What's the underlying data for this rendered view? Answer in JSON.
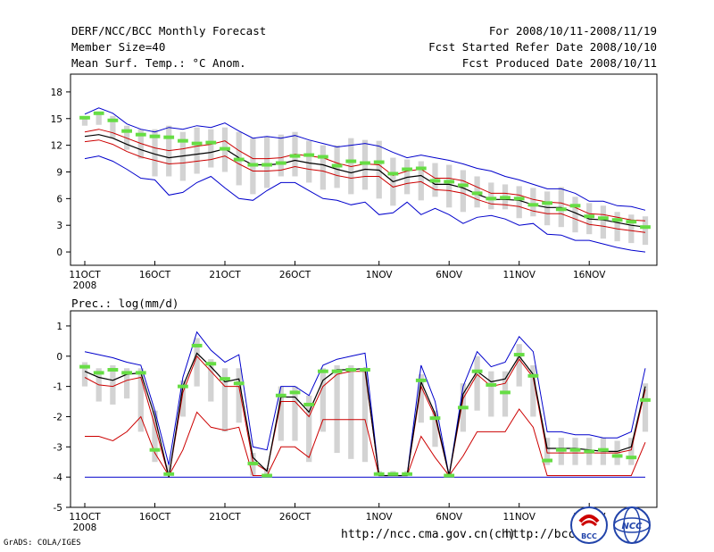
{
  "header": {
    "title": "DERF/NCC/BCC Monthly Forecast",
    "member": "Member Size=40",
    "variable": "Mean Surf. Temp.: °C Anom.",
    "period": "For 2008/10/11-2008/11/19",
    "started": "Fcst Started Refer Date 2008/10/10",
    "produced": "Fcst Produced Date 2008/10/11"
  },
  "footer": {
    "grads": "GrADS: COLA/IGES",
    "url1": "http://ncc.cma.gov.cn(ch)",
    "url2": "http://bcc.c",
    "logo_left": "BCC",
    "logo_right": "NCC"
  },
  "colors": {
    "envelope": "#0000cc",
    "mean": "#000000",
    "spread": "#cc0000",
    "box": "#d3d3d3",
    "marker": "#66dd44"
  },
  "chart_data": [
    {
      "type": "line",
      "title": "Mean Surf. Temp.: °C Anom.",
      "ylim": [
        -1.5,
        20
      ],
      "yticks": [
        0,
        3,
        6,
        9,
        12,
        15,
        18
      ],
      "x_tick_labels": [
        {
          "label": "11OCT",
          "sub": "2008",
          "day": 0
        },
        {
          "label": "16OCT",
          "day": 5
        },
        {
          "label": "21OCT",
          "day": 10
        },
        {
          "label": "26OCT",
          "day": 15
        },
        {
          "label": "1NOV",
          "day": 21
        },
        {
          "label": "6NOV",
          "day": 26
        },
        {
          "label": "11NOV",
          "day": 31
        },
        {
          "label": "16NOV",
          "day": 36
        }
      ],
      "series": [
        {
          "name": "max",
          "color": "#0000cc",
          "values": [
            15.5,
            16.2,
            15.6,
            14.4,
            13.8,
            13.5,
            14.0,
            13.8,
            14.2,
            14.0,
            14.5,
            13.6,
            12.8,
            13.0,
            12.8,
            13.1,
            12.6,
            12.2,
            11.8,
            12.0,
            12.2,
            11.9,
            11.2,
            10.6,
            10.9,
            10.6,
            10.3,
            9.9,
            9.4,
            9.1,
            8.5,
            8.1,
            7.6,
            7.1,
            7.1,
            6.6,
            5.7,
            5.7,
            5.2,
            5.1,
            4.7
          ]
        },
        {
          "name": "upper",
          "color": "#cc0000",
          "values": [
            13.5,
            13.8,
            13.4,
            12.8,
            12.2,
            11.7,
            11.4,
            11.6,
            11.9,
            12.1,
            12.5,
            11.4,
            10.5,
            10.5,
            10.6,
            11.0,
            10.8,
            10.6,
            10.0,
            9.6,
            9.9,
            9.8,
            8.6,
            9.1,
            9.3,
            8.3,
            8.3,
            8.0,
            7.3,
            6.6,
            6.6,
            6.4,
            5.9,
            5.6,
            5.5,
            5.0,
            4.3,
            4.2,
            3.9,
            3.6,
            3.5
          ]
        },
        {
          "name": "mean",
          "color": "#000000",
          "values": [
            13.0,
            13.2,
            12.8,
            12.1,
            11.5,
            11.0,
            10.6,
            10.8,
            11.0,
            11.2,
            11.6,
            10.6,
            9.8,
            9.8,
            9.9,
            10.3,
            10.0,
            9.8,
            9.3,
            8.9,
            9.3,
            9.2,
            7.9,
            8.4,
            8.6,
            7.6,
            7.6,
            7.2,
            6.5,
            5.9,
            5.9,
            5.8,
            5.3,
            5.0,
            5.0,
            4.4,
            3.7,
            3.6,
            3.3,
            3.0,
            2.8
          ]
        },
        {
          "name": "lower",
          "color": "#cc0000",
          "values": [
            12.4,
            12.6,
            12.1,
            11.3,
            10.7,
            10.3,
            9.9,
            10.0,
            10.2,
            10.4,
            10.8,
            9.9,
            9.1,
            9.1,
            9.2,
            9.6,
            9.3,
            9.1,
            8.6,
            8.3,
            8.5,
            8.5,
            7.3,
            7.7,
            7.9,
            7.0,
            6.9,
            6.6,
            5.9,
            5.4,
            5.3,
            5.1,
            4.6,
            4.3,
            4.3,
            3.7,
            3.1,
            2.9,
            2.6,
            2.4,
            2.2
          ]
        },
        {
          "name": "min",
          "color": "#0000cc",
          "values": [
            10.5,
            10.8,
            10.2,
            9.3,
            8.3,
            8.1,
            6.4,
            6.7,
            7.8,
            8.5,
            7.2,
            6.0,
            5.8,
            6.9,
            7.8,
            7.8,
            6.9,
            6.0,
            5.8,
            5.3,
            5.6,
            4.2,
            4.4,
            5.6,
            4.2,
            4.9,
            4.2,
            3.2,
            3.9,
            4.1,
            3.7,
            3.0,
            3.2,
            2.0,
            1.9,
            1.3,
            1.3,
            0.9,
            0.5,
            0.2,
            0.0
          ]
        },
        {
          "name": "member-marker",
          "color": "#66dd44",
          "values": [
            15.1,
            15.6,
            14.8,
            13.6,
            13.2,
            13.0,
            12.9,
            12.5,
            12.2,
            12.3,
            11.6,
            10.4,
            9.8,
            9.8,
            10.0,
            10.8,
            10.9,
            10.7,
            9.7,
            10.2,
            10.0,
            10.1,
            8.8,
            9.3,
            9.4,
            8.0,
            7.9,
            7.5,
            6.6,
            6.0,
            6.1,
            6.0,
            5.3,
            5.5,
            4.8,
            5.2,
            4.0,
            3.8,
            3.6,
            3.4,
            2.8
          ]
        }
      ],
      "boxes": {
        "low": [
          14.2,
          14.3,
          12.8,
          11.5,
          10.5,
          8.5,
          8.5,
          8.0,
          8.8,
          9.5,
          9.0,
          7.5,
          6.5,
          7.2,
          8.5,
          8.5,
          7.8,
          7.0,
          7.2,
          6.5,
          7.0,
          6.0,
          5.2,
          6.5,
          5.8,
          6.2,
          5.0,
          4.5,
          5.0,
          4.8,
          4.8,
          3.8,
          4.0,
          3.0,
          2.8,
          2.2,
          2.0,
          1.5,
          1.2,
          1.0,
          0.8
        ],
        "high": [
          15.2,
          15.8,
          15.3,
          14.2,
          13.8,
          13.8,
          14.2,
          13.5,
          14.0,
          13.8,
          14.0,
          13.5,
          12.8,
          13.0,
          13.2,
          13.5,
          12.5,
          12.0,
          12.0,
          12.8,
          12.6,
          12.5,
          10.6,
          10.4,
          10.2,
          10.0,
          9.8,
          9.2,
          8.5,
          7.8,
          7.6,
          7.4,
          7.2,
          6.8,
          7.3,
          6.2,
          5.5,
          5.2,
          4.5,
          4.2,
          4.0
        ]
      }
    },
    {
      "type": "line",
      "title": "Prec.: log(mm/d)",
      "ylim": [
        -5,
        1.5
      ],
      "yticks": [
        -5,
        -4,
        -3,
        -2,
        -1,
        0,
        1
      ],
      "x_tick_labels": [
        {
          "label": "11OCT",
          "sub": "2008",
          "day": 0
        },
        {
          "label": "16OCT",
          "day": 5
        },
        {
          "label": "21OCT",
          "day": 10
        },
        {
          "label": "26OCT",
          "day": 15
        },
        {
          "label": "1NOV",
          "day": 21
        },
        {
          "label": "6NOV",
          "day": 26
        },
        {
          "label": "11NOV",
          "day": 31
        },
        {
          "label": "16NOV",
          "day": 36
        }
      ],
      "series": [
        {
          "name": "max",
          "color": "#0000cc",
          "values": [
            0.15,
            0.05,
            -0.05,
            -0.2,
            -0.3,
            -1.8,
            -3.6,
            -0.7,
            0.8,
            0.2,
            -0.2,
            0.05,
            -3.0,
            -3.1,
            -1.0,
            -1.0,
            -1.3,
            -0.3,
            -0.1,
            0.0,
            0.1,
            -3.95,
            -3.95,
            -3.95,
            -0.3,
            -1.5,
            -3.95,
            -1.0,
            0.15,
            -0.35,
            -0.2,
            0.65,
            0.15,
            -2.5,
            -2.5,
            -2.6,
            -2.6,
            -2.7,
            -2.7,
            -2.5,
            -0.4
          ]
        },
        {
          "name": "upper",
          "color": "#cc0000",
          "values": [
            -0.7,
            -0.95,
            -1.0,
            -0.8,
            -0.7,
            -2.3,
            -4.0,
            -1.2,
            0.0,
            -0.5,
            -1.0,
            -1.0,
            -3.5,
            -3.8,
            -1.5,
            -1.5,
            -2.0,
            -1.0,
            -0.6,
            -0.5,
            -0.5,
            -3.95,
            -3.95,
            -3.95,
            -1.0,
            -2.0,
            -3.95,
            -1.4,
            -0.6,
            -1.0,
            -0.9,
            -0.1,
            -0.7,
            -3.2,
            -3.2,
            -3.2,
            -3.2,
            -3.2,
            -3.2,
            -3.1,
            -1.1
          ]
        },
        {
          "name": "mean",
          "color": "#000000",
          "values": [
            -0.5,
            -0.7,
            -0.8,
            -0.6,
            -0.55,
            -2.0,
            -4.0,
            -1.0,
            0.1,
            -0.35,
            -0.85,
            -0.75,
            -3.35,
            -3.8,
            -1.35,
            -1.35,
            -1.85,
            -0.8,
            -0.45,
            -0.45,
            -0.4,
            -3.95,
            -3.95,
            -3.95,
            -0.85,
            -1.9,
            -3.95,
            -1.25,
            -0.5,
            -0.85,
            -0.75,
            0.0,
            -0.6,
            -3.05,
            -3.05,
            -3.05,
            -3.1,
            -3.15,
            -3.15,
            -3.0,
            -1.0
          ]
        },
        {
          "name": "lower",
          "color": "#cc0000",
          "values": [
            -2.65,
            -2.65,
            -2.8,
            -2.5,
            -2.0,
            -3.2,
            -3.95,
            -3.1,
            -1.85,
            -2.35,
            -2.45,
            -2.35,
            -3.95,
            -3.95,
            -3.0,
            -3.0,
            -3.35,
            -2.1,
            -2.1,
            -2.1,
            -2.1,
            -3.95,
            -3.95,
            -3.95,
            -2.65,
            -3.35,
            -3.95,
            -3.3,
            -2.5,
            -2.5,
            -2.5,
            -1.75,
            -2.35,
            -3.95,
            -3.95,
            -3.95,
            -3.95,
            -3.95,
            -3.95,
            -3.95,
            -2.85
          ]
        },
        {
          "name": "min",
          "color": "#0000cc",
          "values": [
            -4,
            -4,
            -4,
            -4,
            -4,
            -4,
            -4,
            -4,
            -4,
            -4,
            -4,
            -4,
            -4,
            -4,
            -4,
            -4,
            -4,
            -4,
            -4,
            -4,
            -4,
            -4,
            -4,
            -4,
            -4,
            -4,
            -4,
            -4,
            -4,
            -4,
            -4,
            -4,
            -4,
            -4,
            -4,
            -4,
            -4,
            -4,
            -4,
            -4,
            -4
          ]
        },
        {
          "name": "member-marker",
          "color": "#66dd44",
          "values": [
            -0.35,
            -0.55,
            -0.45,
            -0.55,
            -0.55,
            -3.1,
            -3.9,
            -1.0,
            0.35,
            -0.25,
            -0.75,
            -0.9,
            -3.55,
            -3.95,
            -1.3,
            -1.2,
            -1.6,
            -0.5,
            -0.5,
            -0.45,
            -0.45,
            -3.9,
            -3.9,
            -3.9,
            -0.8,
            -2.05,
            -3.95,
            -1.7,
            -0.5,
            -0.95,
            -1.2,
            0.05,
            -0.65,
            -3.45,
            -3.1,
            -3.1,
            -3.15,
            -3.1,
            -3.3,
            -3.35,
            -1.45
          ]
        }
      ],
      "boxes": {
        "low": [
          -1.0,
          -1.5,
          -1.6,
          -1.4,
          -2.5,
          -3.5,
          -3.95,
          -2.0,
          -1.0,
          -1.5,
          -2.5,
          -2.2,
          -3.95,
          -3.95,
          -2.8,
          -2.8,
          -3.5,
          -2.5,
          -3.2,
          -3.4,
          -3.5,
          -3.95,
          -3.95,
          -3.95,
          -2.2,
          -3.0,
          -3.95,
          -2.5,
          -1.8,
          -2.0,
          -2.0,
          -1.0,
          -2.0,
          -3.6,
          -3.6,
          -3.6,
          -3.6,
          -3.6,
          -3.6,
          -3.6,
          -2.5
        ],
        "high": [
          -0.2,
          -0.4,
          -0.3,
          -0.4,
          -0.4,
          -1.8,
          -3.6,
          -0.8,
          0.6,
          -0.1,
          -0.4,
          -0.4,
          -3.2,
          -3.7,
          -1.0,
          -1.0,
          -1.3,
          -0.4,
          -0.3,
          -0.3,
          -0.4,
          -3.8,
          -3.8,
          -3.8,
          -0.6,
          -1.8,
          -3.8,
          -0.9,
          0.0,
          -0.5,
          -0.5,
          0.4,
          -0.3,
          -2.7,
          -2.7,
          -2.7,
          -2.7,
          -2.7,
          -2.8,
          -2.7,
          -0.9
        ]
      }
    }
  ]
}
